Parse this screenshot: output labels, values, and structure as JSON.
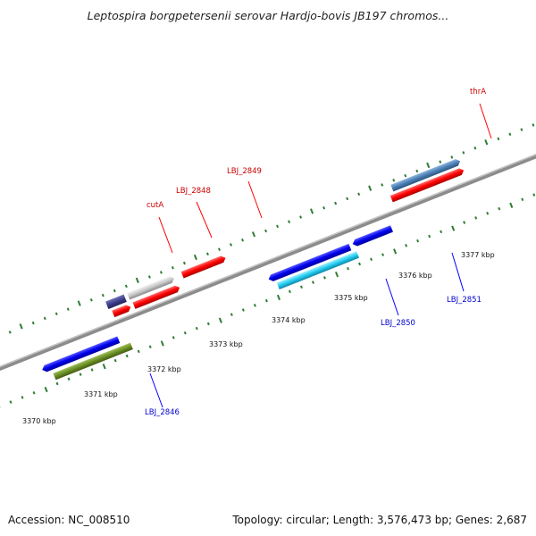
{
  "title": "Leptospira borgpetersenii serovar Hardjo-bovis JB197 chromos...",
  "accession": "Accession: NC_008510",
  "stats": "Topology: circular; Length: 3,576,473 bp; Genes: 2,687",
  "genome_map": {
    "tick_labels": [
      "3370 kbp",
      "3371 kbp",
      "3372 kbp",
      "3373 kbp",
      "3374 kbp",
      "3375 kbp",
      "3376 kbp",
      "3377 kbp"
    ],
    "forward_labels": [
      {
        "text": "cutA",
        "color": "#cc0000"
      },
      {
        "text": "LBJ_2848",
        "color": "#cc0000"
      },
      {
        "text": "LBJ_2849",
        "color": "#cc0000"
      },
      {
        "text": "thrA",
        "color": "#cc0000"
      }
    ],
    "reverse_labels": [
      {
        "text": "LBJ_2846",
        "color": "#0000cc"
      },
      {
        "text": "LBJ_2850",
        "color": "#0000cc"
      },
      {
        "text": "LBJ_2851",
        "color": "#0000cc"
      }
    ],
    "colors": {
      "backbone": "#8c8c8c",
      "tick_marks": "#2e7d32",
      "forward_gene": "#ff0000",
      "reverse_gene": "#0000ee",
      "cyan_gene": "#22ccf0",
      "olive_gene": "#6b8e23",
      "steel_gene": "#4a7fb5",
      "grey_gene": "#c8c8c8",
      "navy_gene": "#3c3c8c"
    }
  }
}
